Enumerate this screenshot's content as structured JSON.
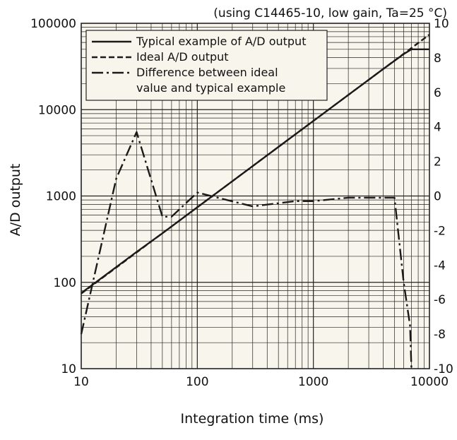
{
  "chart_data": {
    "type": "line",
    "note": "(using C14465-10, low gain, Ta=25 °C)",
    "xlabel": "Integration time (ms)",
    "ylabel": "A/D output",
    "y2label": "",
    "x_scale": "log",
    "y_scale": "log",
    "xlim": [
      10,
      10000
    ],
    "ylim": [
      10,
      100000
    ],
    "y2lim": [
      -10,
      10
    ],
    "x_ticks": [
      "10",
      "100",
      "1000",
      "10000"
    ],
    "y_ticks": [
      "10",
      "100",
      "1000",
      "10000",
      "100000"
    ],
    "y2_ticks": [
      "-10",
      "-8",
      "-6",
      "-4",
      "-2",
      "0",
      "2",
      "4",
      "6",
      "8",
      "10"
    ],
    "grid": true,
    "legend_position": "top-left",
    "colors": {
      "line": "#1a1a1a",
      "plot_background": "#f8f6ec",
      "grid": "#222222"
    },
    "series": [
      {
        "name": "Typical example of A/D output",
        "style": "solid",
        "axis": "left",
        "x": [
          10,
          20,
          30,
          50,
          100,
          200,
          500,
          1000,
          2000,
          4000,
          6000,
          7000,
          10000
        ],
        "y": [
          75,
          150,
          225,
          370,
          740,
          1480,
          3700,
          7400,
          14800,
          29600,
          44000,
          50000,
          50000
        ]
      },
      {
        "name": "Ideal A/D output",
        "style": "dashed",
        "axis": "left",
        "x": [
          10,
          100,
          1000,
          10000
        ],
        "y": [
          74,
          740,
          7400,
          74000
        ]
      },
      {
        "name": "Difference between ideal value and typical example",
        "style": "dash-dot",
        "axis": "right",
        "x": [
          10,
          20,
          30,
          50,
          60,
          100,
          150,
          300,
          700,
          1000,
          2000,
          5000,
          6000,
          6800,
          7000
        ],
        "y": [
          -8,
          1,
          3.7,
          -1.2,
          -1.2,
          0.2,
          -0.1,
          -0.6,
          -0.3,
          -0.3,
          -0.1,
          -0.1,
          -5,
          -7.5,
          -10
        ]
      }
    ]
  }
}
